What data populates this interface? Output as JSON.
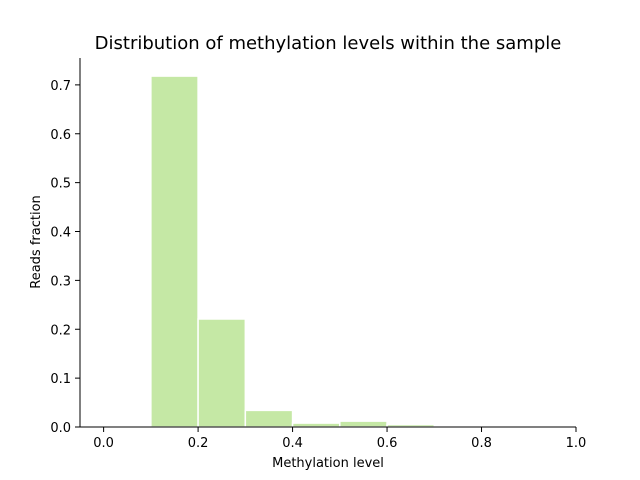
{
  "chart_data": {
    "type": "bar",
    "title": "Distribution of methylation levels within the sample",
    "xlabel": "Methylation level",
    "ylabel": "Reads fraction",
    "bins": [
      {
        "start": 0.1,
        "end": 0.2,
        "value": 0.718
      },
      {
        "start": 0.2,
        "end": 0.3,
        "value": 0.221
      },
      {
        "start": 0.3,
        "end": 0.4,
        "value": 0.034
      },
      {
        "start": 0.4,
        "end": 0.5,
        "value": 0.008
      },
      {
        "start": 0.5,
        "end": 0.6,
        "value": 0.012
      },
      {
        "start": 0.6,
        "end": 0.7,
        "value": 0.005
      }
    ],
    "xlim": [
      -0.05,
      1.0
    ],
    "ylim": [
      0,
      0.755
    ],
    "xticks": [
      0.0,
      0.2,
      0.4,
      0.6,
      0.8,
      1.0
    ],
    "xtick_labels": [
      "0.0",
      "0.2",
      "0.4",
      "0.6",
      "0.8",
      "1.0"
    ],
    "yticks": [
      0.0,
      0.1,
      0.2,
      0.3,
      0.4,
      0.5,
      0.6,
      0.7
    ],
    "ytick_labels": [
      "0.0",
      "0.1",
      "0.2",
      "0.3",
      "0.4",
      "0.5",
      "0.6",
      "0.7"
    ],
    "grid": false,
    "bar_color": "#c5e8a5",
    "bar_edge_color": "#ffffff"
  }
}
